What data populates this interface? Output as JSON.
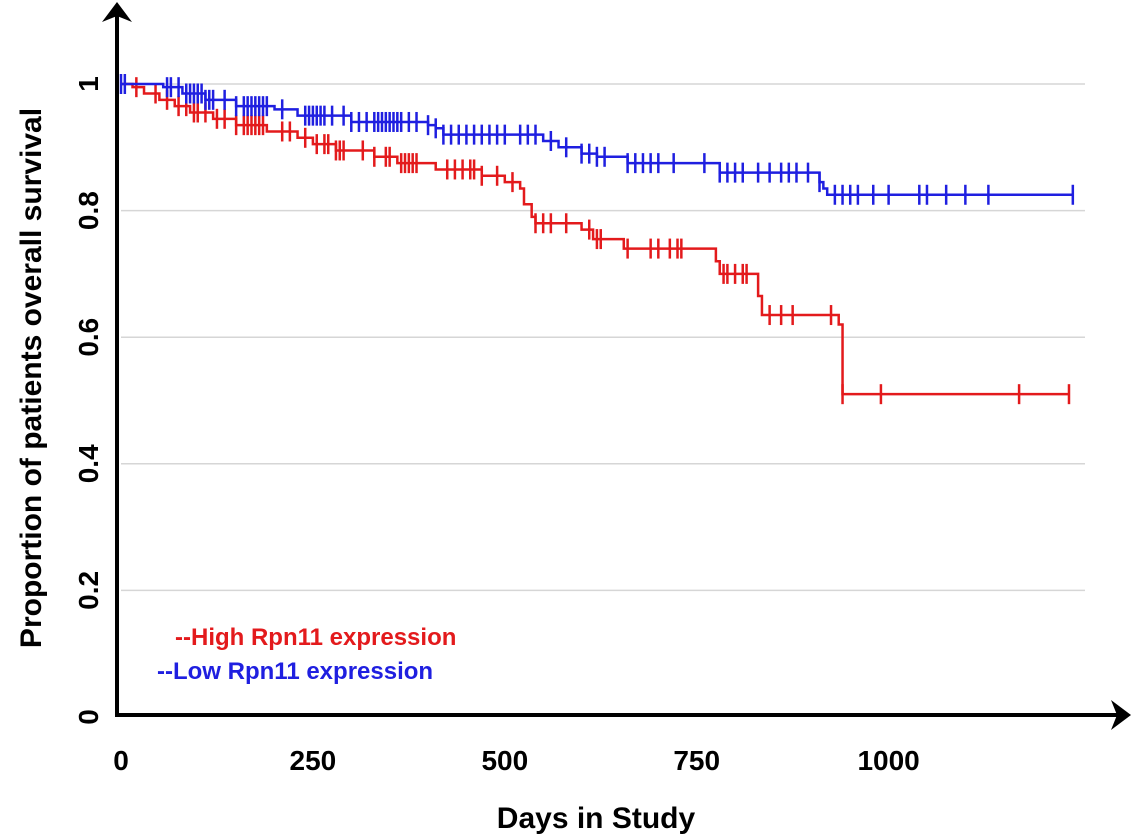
{
  "chart_data": {
    "type": "line",
    "subtype": "kaplan-meier",
    "title": "",
    "xlabel": "Days in Study",
    "ylabel": "Proportion of patients overall survival",
    "xlim": [
      0,
      1250
    ],
    "ylim": [
      0,
      1.03
    ],
    "x_ticks": [
      0,
      250,
      500,
      750,
      1000
    ],
    "x_tick_labels": [
      "0",
      "250",
      "500",
      "750",
      "1000"
    ],
    "y_ticks": [
      0,
      0.2,
      0.4,
      0.6,
      0.8,
      1
    ],
    "y_tick_labels": [
      "0",
      "0.2",
      "0.4",
      "0.6",
      "0.8",
      "1"
    ],
    "grid": "horizontal",
    "legend_position": "bottom-left",
    "series": [
      {
        "name": "--High Rpn11 expression",
        "color": "#e31a1c",
        "steps": [
          [
            0,
            1.0
          ],
          [
            15,
            0.995
          ],
          [
            30,
            0.985
          ],
          [
            50,
            0.975
          ],
          [
            70,
            0.965
          ],
          [
            90,
            0.955
          ],
          [
            120,
            0.945
          ],
          [
            150,
            0.935
          ],
          [
            190,
            0.925
          ],
          [
            230,
            0.915
          ],
          [
            250,
            0.905
          ],
          [
            280,
            0.895
          ],
          [
            330,
            0.885
          ],
          [
            360,
            0.875
          ],
          [
            410,
            0.865
          ],
          [
            470,
            0.855
          ],
          [
            500,
            0.845
          ],
          [
            520,
            0.835
          ],
          [
            525,
            0.81
          ],
          [
            535,
            0.79
          ],
          [
            540,
            0.78
          ],
          [
            600,
            0.77
          ],
          [
            615,
            0.755
          ],
          [
            655,
            0.74
          ],
          [
            775,
            0.72
          ],
          [
            780,
            0.7
          ],
          [
            830,
            0.665
          ],
          [
            835,
            0.635
          ],
          [
            935,
            0.62
          ],
          [
            940,
            0.51
          ],
          [
            1235,
            0.51
          ]
        ],
        "censored": [
          20,
          45,
          60,
          75,
          85,
          95,
          100,
          110,
          125,
          135,
          150,
          160,
          165,
          170,
          175,
          180,
          185,
          210,
          220,
          240,
          255,
          265,
          270,
          280,
          285,
          290,
          315,
          330,
          345,
          350,
          365,
          370,
          375,
          380,
          385,
          425,
          435,
          445,
          455,
          460,
          470,
          490,
          510,
          540,
          550,
          560,
          580,
          610,
          620,
          625,
          660,
          690,
          700,
          715,
          725,
          730,
          785,
          790,
          800,
          810,
          815,
          845,
          860,
          875,
          925,
          940,
          990,
          1170,
          1235
        ]
      },
      {
        "name": "--Low Rpn11 expression",
        "color": "#1f1fe0",
        "steps": [
          [
            0,
            1.0
          ],
          [
            55,
            0.995
          ],
          [
            80,
            0.985
          ],
          [
            110,
            0.975
          ],
          [
            150,
            0.965
          ],
          [
            200,
            0.96
          ],
          [
            230,
            0.95
          ],
          [
            300,
            0.94
          ],
          [
            400,
            0.935
          ],
          [
            410,
            0.93
          ],
          [
            420,
            0.92
          ],
          [
            550,
            0.91
          ],
          [
            570,
            0.9
          ],
          [
            600,
            0.89
          ],
          [
            620,
            0.885
          ],
          [
            660,
            0.875
          ],
          [
            780,
            0.86
          ],
          [
            910,
            0.845
          ],
          [
            915,
            0.835
          ],
          [
            920,
            0.825
          ],
          [
            1240,
            0.825
          ]
        ],
        "censored": [
          0,
          5,
          60,
          65,
          75,
          85,
          90,
          95,
          100,
          105,
          110,
          115,
          120,
          135,
          150,
          160,
          165,
          170,
          175,
          180,
          185,
          190,
          210,
          240,
          245,
          250,
          255,
          260,
          265,
          275,
          290,
          300,
          310,
          320,
          330,
          335,
          340,
          345,
          350,
          355,
          360,
          365,
          375,
          385,
          400,
          410,
          420,
          430,
          440,
          450,
          460,
          470,
          480,
          490,
          500,
          520,
          530,
          540,
          560,
          580,
          600,
          610,
          620,
          630,
          660,
          670,
          680,
          690,
          700,
          720,
          760,
          780,
          790,
          800,
          810,
          830,
          845,
          860,
          870,
          880,
          895,
          910,
          930,
          940,
          950,
          960,
          980,
          1000,
          1040,
          1050,
          1075,
          1100,
          1130,
          1240
        ]
      }
    ]
  }
}
